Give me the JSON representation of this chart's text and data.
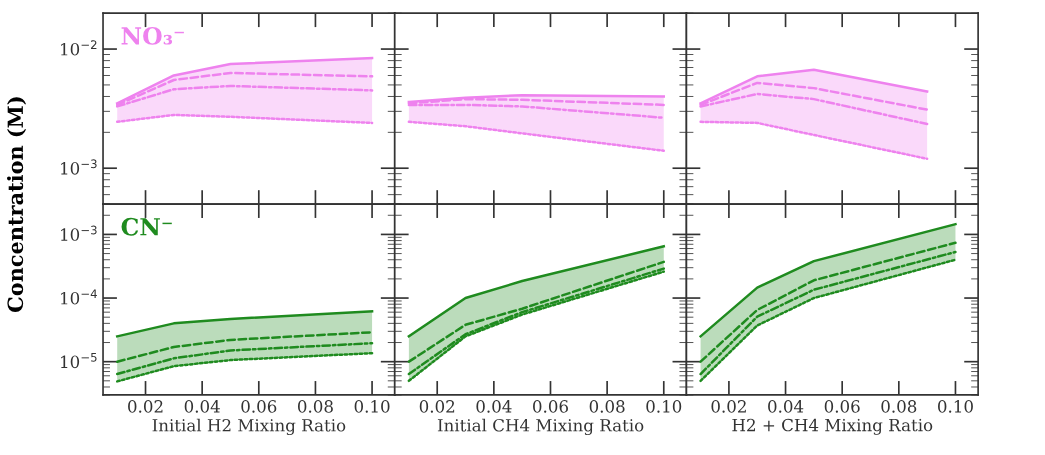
{
  "chart_data": [
    {
      "type": "line",
      "ylabel": "Concentration (M)",
      "annotations": [
        "NO₃⁻"
      ],
      "x": [
        0.01,
        0.03,
        0.05,
        0.1
      ],
      "log": "y",
      "xlim": [
        0.005,
        0.108
      ],
      "ylim": [
        0.0005,
        0.02
      ],
      "xticks": [
        {
          "value": 0.02,
          "label": null
        },
        {
          "value": 0.04,
          "label": null
        },
        {
          "value": 0.06,
          "label": null
        },
        {
          "value": 0.08,
          "label": null
        },
        {
          "value": 0.1,
          "label": null
        }
      ],
      "yticks": [
        {
          "value": 0.001,
          "label": "10$^{−3}$"
        },
        {
          "value": 0.01,
          "label": "10$^{−2}$"
        }
      ],
      "tick_labels": "y",
      "series": [
        {
          "color": "#ee82ee",
          "line_style": "solid",
          "values": [
            0.0035,
            0.006,
            0.0075,
            0.0084
          ]
        },
        {
          "color": "#ee82ee",
          "line_style": "dashed",
          "values": [
            0.0034,
            0.0055,
            0.0063,
            0.0059
          ],
          "lower": [
            0.00245,
            0.0028,
            0.0027,
            0.0024
          ],
          "upper": [
            0.0035,
            0.006,
            0.0075,
            0.0084
          ]
        },
        {
          "color": "#ee82ee",
          "line_style": "dashdot",
          "values": [
            0.0033,
            0.0046,
            0.0049,
            0.0045
          ]
        },
        {
          "color": "#ee82ee",
          "line_style": "dotted",
          "values": [
            0.00245,
            0.0028,
            0.0027,
            0.0024
          ]
        }
      ]
    },
    {
      "type": "line",
      "x": [
        0.01,
        0.03,
        0.05,
        0.1
      ],
      "log": "y",
      "xlim": [
        0.005,
        0.108
      ],
      "ylim": [
        0.0005,
        0.02
      ],
      "xticks": [
        {
          "value": 0.02,
          "label": null
        },
        {
          "value": 0.04,
          "label": null
        },
        {
          "value": 0.06,
          "label": null
        },
        {
          "value": 0.08,
          "label": null
        },
        {
          "value": 0.1,
          "label": null
        }
      ],
      "yticks": [
        {
          "value": 0.001,
          "label": null
        },
        {
          "value": 0.01,
          "label": null
        }
      ],
      "tick_labels": false,
      "series": [
        {
          "color": "#ee82ee",
          "line_style": "solid",
          "values": [
            0.0036,
            0.0039,
            0.0041,
            0.004
          ]
        },
        {
          "color": "#ee82ee",
          "line_style": "dashed",
          "values": [
            0.0035,
            0.0038,
            0.00375,
            0.0034
          ],
          "lower": [
            0.00245,
            0.00225,
            0.00196,
            0.0014
          ],
          "upper": [
            0.0036,
            0.0039,
            0.0041,
            0.004
          ]
        },
        {
          "color": "#ee82ee",
          "line_style": "dashdot",
          "values": [
            0.0034,
            0.0034,
            0.0033,
            0.00265
          ]
        },
        {
          "color": "#ee82ee",
          "line_style": "dotted",
          "values": [
            0.00245,
            0.00225,
            0.00196,
            0.0014
          ]
        }
      ]
    },
    {
      "type": "line",
      "x": [
        0.01,
        0.03,
        0.05,
        0.09
      ],
      "log": "y",
      "xlim": [
        0.005,
        0.108
      ],
      "ylim": [
        0.0005,
        0.02
      ],
      "xticks": [
        {
          "value": 0.02,
          "label": null
        },
        {
          "value": 0.04,
          "label": null
        },
        {
          "value": 0.06,
          "label": null
        },
        {
          "value": 0.08,
          "label": null
        },
        {
          "value": 0.1,
          "label": null
        }
      ],
      "yticks": [
        {
          "value": 0.001,
          "label": null
        },
        {
          "value": 0.01,
          "label": null
        }
      ],
      "tick_labels": false,
      "series": [
        {
          "color": "#ee82ee",
          "line_style": "solid",
          "values": [
            0.0035,
            0.0059,
            0.0067,
            0.0044
          ]
        },
        {
          "color": "#ee82ee",
          "line_style": "dashed",
          "values": [
            0.0034,
            0.0052,
            0.0047,
            0.0031
          ],
          "lower": [
            0.00245,
            0.0024,
            0.0019,
            0.0012
          ],
          "upper": [
            0.0035,
            0.0059,
            0.0067,
            0.0044
          ]
        },
        {
          "color": "#ee82ee",
          "line_style": "dashdot",
          "values": [
            0.0033,
            0.0042,
            0.0038,
            0.00235
          ]
        },
        {
          "color": "#ee82ee",
          "line_style": "dotted",
          "values": [
            0.00245,
            0.0024,
            0.0019,
            0.0012
          ]
        }
      ]
    },
    {
      "type": "line",
      "xlabel": "Initial H2 Mixing Ratio",
      "annotations": [
        "CN⁻"
      ],
      "x": [
        0.01,
        0.03,
        0.05,
        0.1
      ],
      "log": "y",
      "xlim": [
        0.005,
        0.108
      ],
      "ylim": [
        3e-06,
        0.003
      ],
      "xticks": [
        {
          "value": 0.02,
          "label": "0.02"
        },
        {
          "value": 0.04,
          "label": "0.04"
        },
        {
          "value": 0.06,
          "label": "0.06"
        },
        {
          "value": 0.08,
          "label": "0.08"
        },
        {
          "value": 0.1,
          "label": "0.10"
        }
      ],
      "yticks": [
        {
          "value": 1e-05,
          "label": "10$^{−5}$"
        },
        {
          "value": 0.0001,
          "label": "10$^{−4}$"
        },
        {
          "value": 0.001,
          "label": "10$^{−3}$"
        }
      ],
      "series": [
        {
          "color": "#1f8b1f",
          "line_style": "solid",
          "values": [
            2.5e-05,
            4e-05,
            4.7e-05,
            6.2e-05
          ]
        },
        {
          "color": "#1f8b1f",
          "line_style": "dashed",
          "values": [
            1e-05,
            1.7e-05,
            2.2e-05,
            2.9e-05
          ],
          "lower": [
            4.9e-06,
            8.5e-06,
            1.06e-05,
            1.36e-05
          ],
          "upper": [
            2.5e-05,
            4e-05,
            4.7e-05,
            6.2e-05
          ]
        },
        {
          "color": "#1f8b1f",
          "line_style": "dashdot",
          "values": [
            6.4e-06,
            1.13e-05,
            1.5e-05,
            1.95e-05
          ]
        },
        {
          "color": "#1f8b1f",
          "line_style": "dotted",
          "values": [
            4.9e-06,
            8.5e-06,
            1.06e-05,
            1.36e-05
          ]
        }
      ]
    },
    {
      "type": "line",
      "xlabel": "Initial CH4 Mixing Ratio",
      "x": [
        0.01,
        0.03,
        0.05,
        0.1
      ],
      "log": "y",
      "xlim": [
        0.005,
        0.108
      ],
      "ylim": [
        3e-06,
        0.003
      ],
      "xticks": [
        {
          "value": 0.02,
          "label": "0.02"
        },
        {
          "value": 0.04,
          "label": "0.04"
        },
        {
          "value": 0.06,
          "label": "0.06"
        },
        {
          "value": 0.08,
          "label": "0.08"
        },
        {
          "value": 0.1,
          "label": "0.10"
        }
      ],
      "yticks": [
        {
          "value": 1e-05,
          "label": null
        },
        {
          "value": 0.0001,
          "label": null
        },
        {
          "value": 0.001,
          "label": null
        }
      ],
      "tick_labels": "x",
      "series": [
        {
          "color": "#1f8b1f",
          "line_style": "solid",
          "values": [
            2.5e-05,
            0.0001,
            0.000185,
            0.00065
          ]
        },
        {
          "color": "#1f8b1f",
          "line_style": "dashed",
          "values": [
            1e-05,
            3.8e-05,
            6.8e-05,
            0.00037
          ],
          "lower": [
            5e-06,
            2.5e-05,
            5.5e-05,
            0.00026
          ],
          "upper": [
            2.5e-05,
            0.0001,
            0.000185,
            0.00065
          ]
        },
        {
          "color": "#1f8b1f",
          "line_style": "dashdot",
          "values": [
            6.4e-06,
            2.7e-05,
            6e-05,
            0.00029
          ]
        },
        {
          "color": "#1f8b1f",
          "line_style": "dotted",
          "values": [
            5e-06,
            2.5e-05,
            5.5e-05,
            0.00026
          ]
        }
      ]
    },
    {
      "type": "line",
      "xlabel": "H2 + CH4 Mixing Ratio",
      "x": [
        0.01,
        0.03,
        0.05,
        0.1
      ],
      "log": "y",
      "xlim": [
        0.005,
        0.108
      ],
      "ylim": [
        3e-06,
        0.003
      ],
      "xticks": [
        {
          "value": 0.02,
          "label": "0.02"
        },
        {
          "value": 0.04,
          "label": "0.04"
        },
        {
          "value": 0.06,
          "label": "0.06"
        },
        {
          "value": 0.08,
          "label": "0.08"
        },
        {
          "value": 0.1,
          "label": "0.10"
        }
      ],
      "yticks": [
        {
          "value": 1e-05,
          "label": null
        },
        {
          "value": 0.0001,
          "label": null
        },
        {
          "value": 0.001,
          "label": null
        }
      ],
      "tick_labels": "x",
      "series": [
        {
          "color": "#1f8b1f",
          "line_style": "solid",
          "values": [
            2.5e-05,
            0.000146,
            0.00038,
            0.00145
          ]
        },
        {
          "color": "#1f8b1f",
          "line_style": "dashed",
          "values": [
            1e-05,
            6.5e-05,
            0.00019,
            0.00074
          ],
          "lower": [
            5e-06,
            3.7e-05,
            0.0001,
            0.0004
          ],
          "upper": [
            2.5e-05,
            0.000146,
            0.00038,
            0.00145
          ]
        },
        {
          "color": "#1f8b1f",
          "line_style": "dashdot",
          "values": [
            6.4e-06,
            5.1e-05,
            0.000135,
            0.00053
          ]
        },
        {
          "color": "#1f8b1f",
          "line_style": "dotted",
          "values": [
            5e-06,
            3.7e-05,
            0.0001,
            0.0004
          ]
        }
      ]
    }
  ]
}
